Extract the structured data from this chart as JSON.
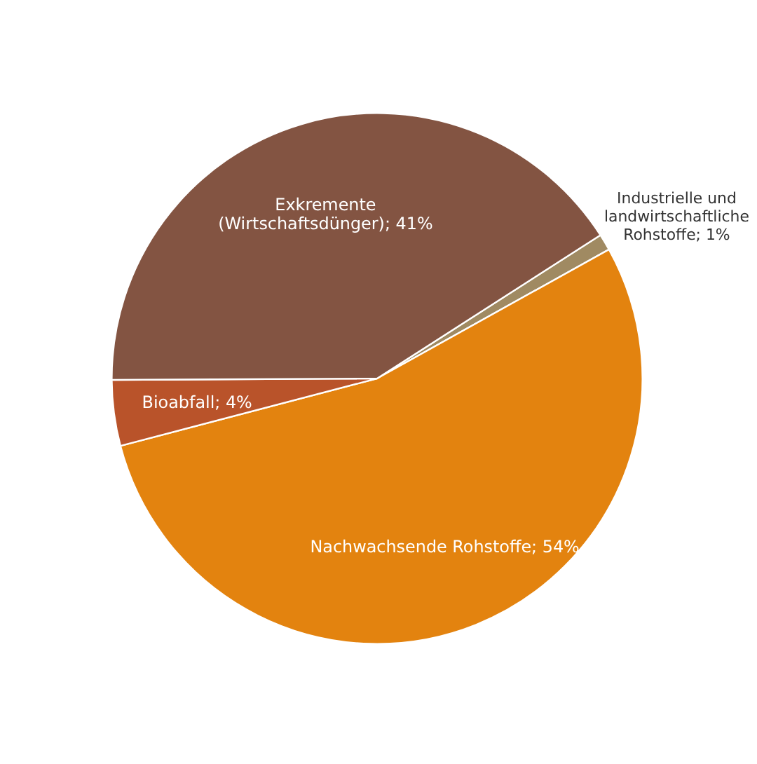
{
  "chart_data": {
    "type": "pie",
    "categories": [
      "Industrielle und landwirtschaftliche Rohstoffe",
      "Nachwachsende Rohstoffe",
      "Bioabfall",
      "Exkremente (Wirtschaftsdünger)"
    ],
    "values": [
      1,
      54,
      4,
      41
    ],
    "value_labels": [
      "1%",
      "54%",
      "4%",
      "41%"
    ],
    "colors": [
      "#a08a62",
      "#e3830f",
      "#b9532a",
      "#835442"
    ],
    "legend": false
  }
}
